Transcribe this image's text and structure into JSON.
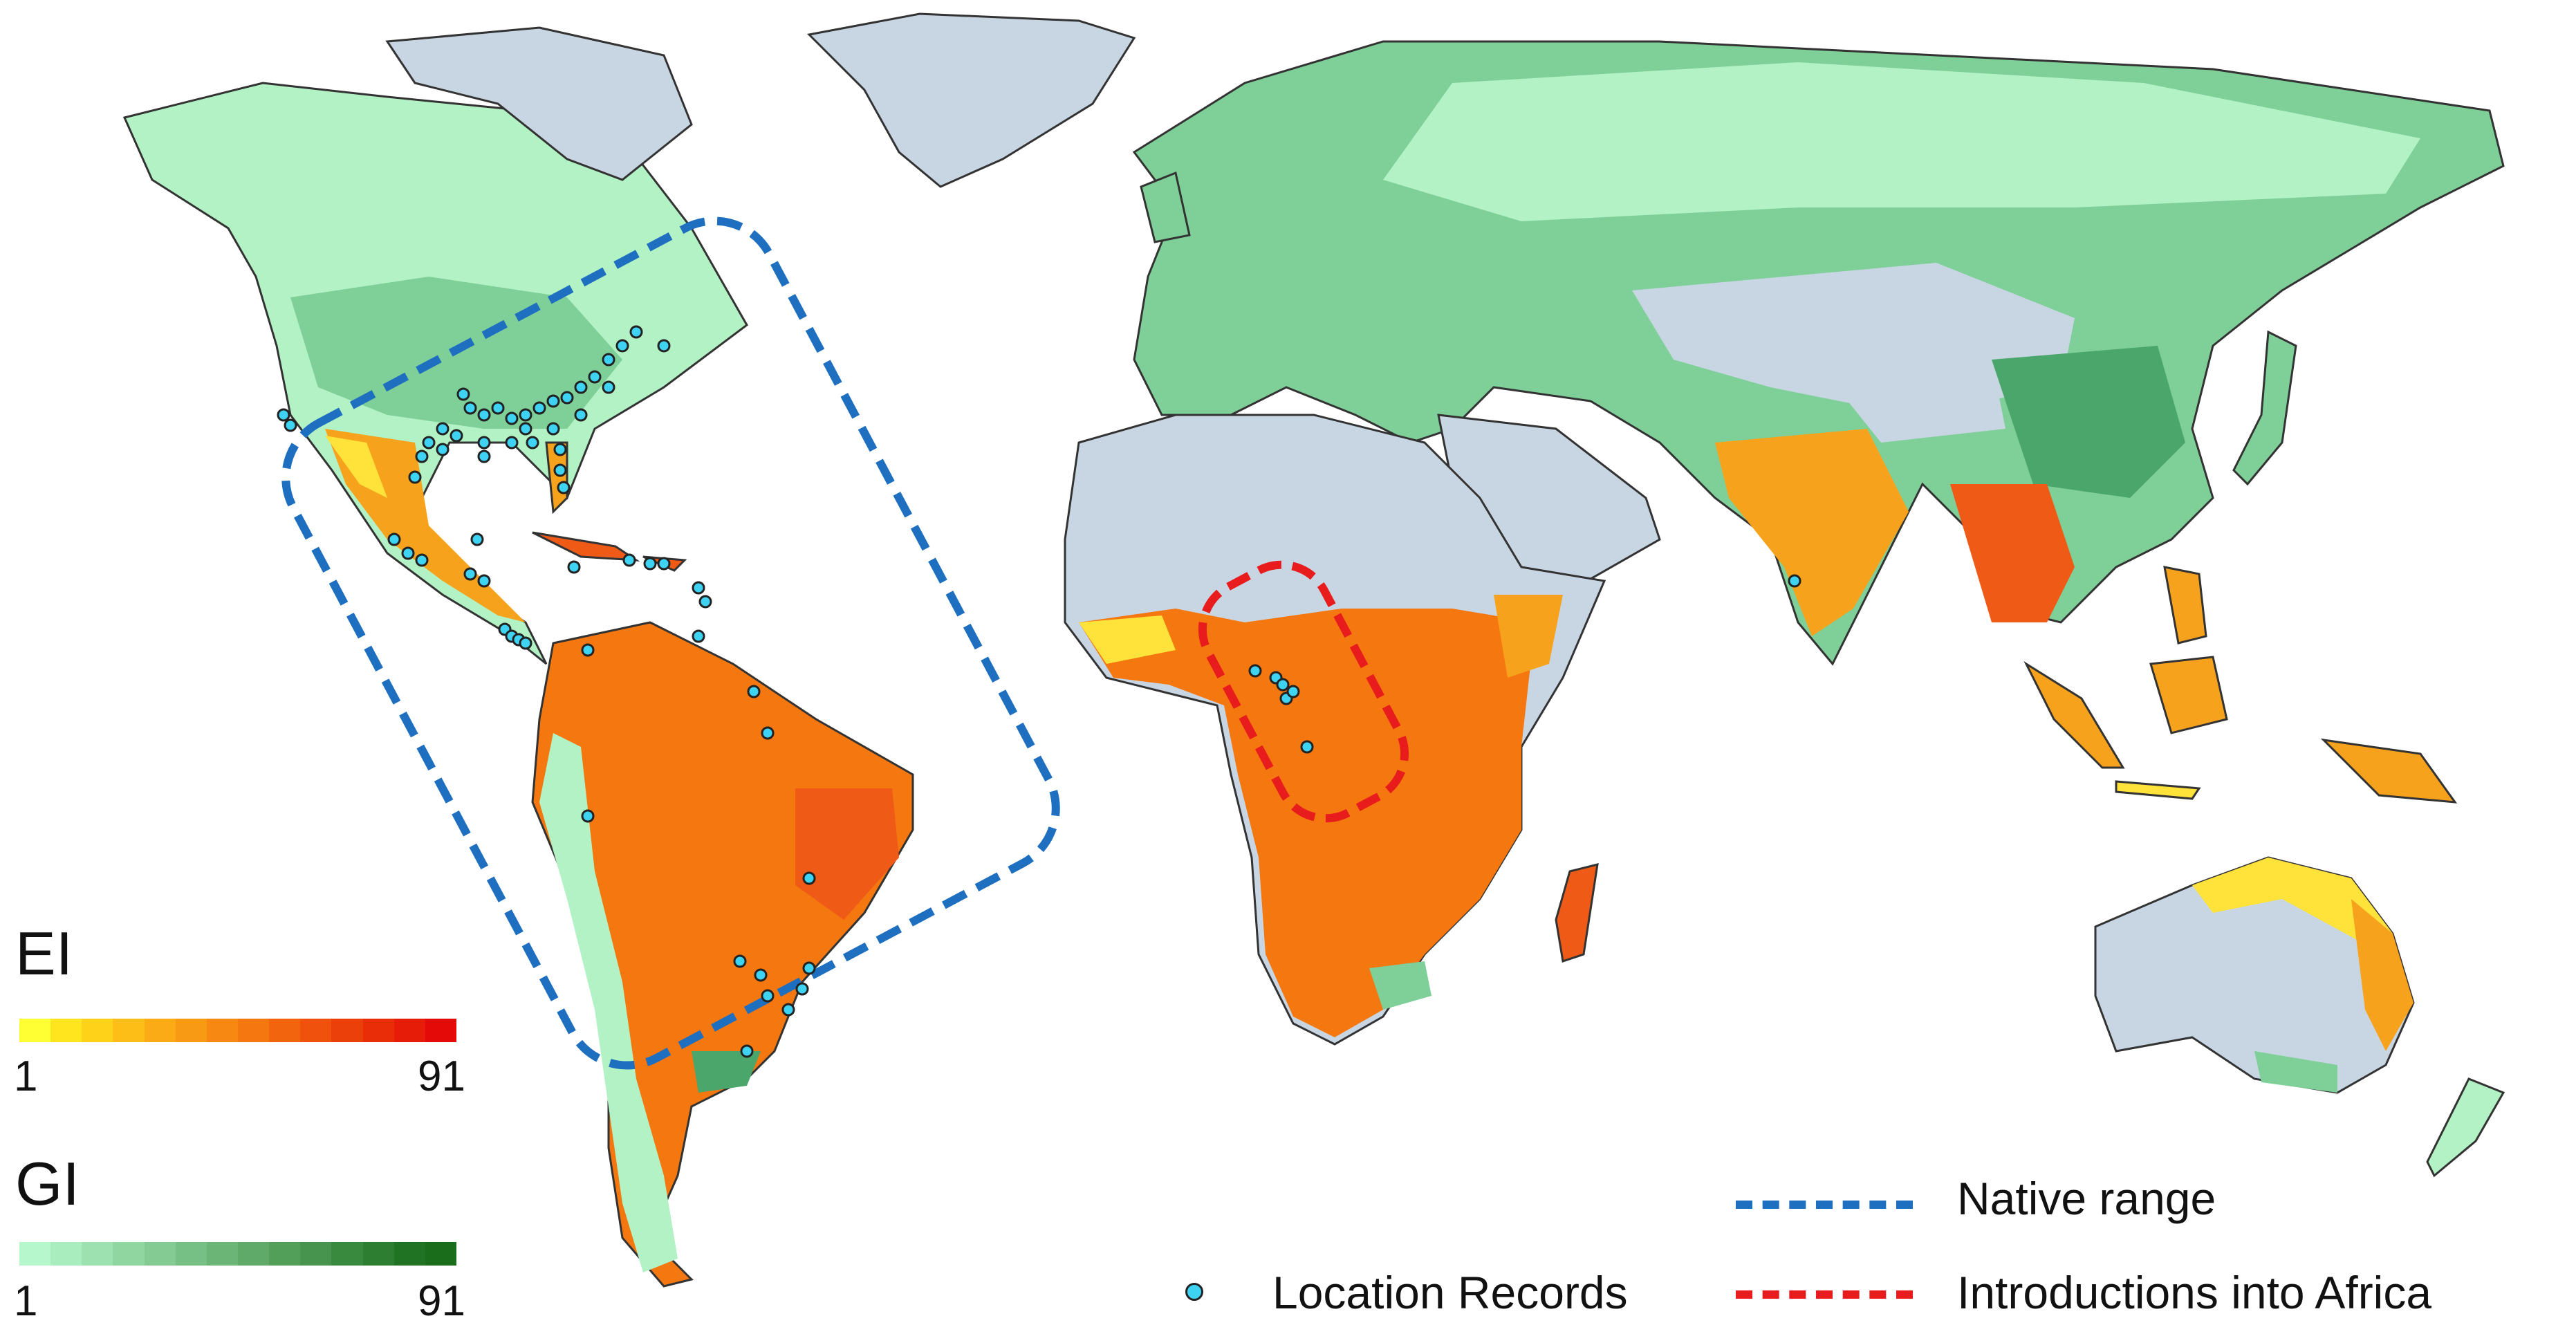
{
  "legend": {
    "ei": {
      "title": "EI",
      "min_label": "1",
      "max_label": "91",
      "colors": [
        "#ffff33",
        "#ffe51e",
        "#ffd21a",
        "#fdbf17",
        "#fbab15",
        "#f99a14",
        "#f78812",
        "#f57710",
        "#f2640e",
        "#f0520d",
        "#ec400b",
        "#e92d09",
        "#e61b08",
        "#e30a08"
      ]
    },
    "gi": {
      "title": "GI",
      "min_label": "1",
      "max_label": "91",
      "colors": [
        "#b6f7cc",
        "#a9ecbd",
        "#9de1b0",
        "#90d6a1",
        "#84cb93",
        "#77c085",
        "#6bb577",
        "#5faa69",
        "#529f5a",
        "#46944d",
        "#39893e",
        "#2d7e30",
        "#207322",
        "#1a6d1a"
      ]
    }
  },
  "key": {
    "native_range_label": "Native range",
    "native_range_color": "#1f6fc0",
    "introductions_label": "Introductions into Africa",
    "introductions_color": "#e81c1c",
    "location_records_label": "Location Records",
    "location_records_color": "#3fd3f3"
  },
  "map_colors": {
    "ocean": "#ffffff",
    "unsuitable": "#c8d6e3",
    "gi_light": "#b2f2c5",
    "gi_mid": "#7fcf98",
    "gi_dark": "#4aa66a",
    "ei_low": "#ffe23a",
    "ei_mid": "#f7a21c",
    "ei_high": "#ef5a17",
    "border": "#333333"
  }
}
